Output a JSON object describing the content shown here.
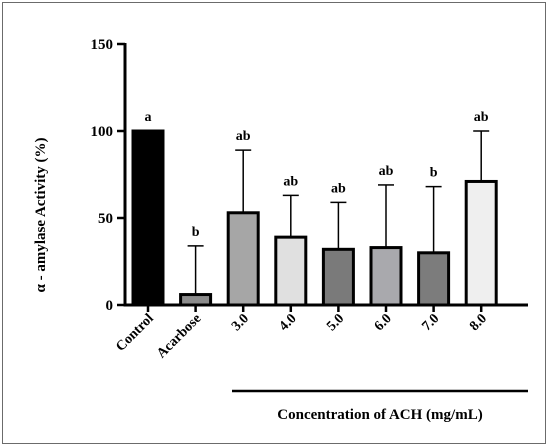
{
  "chart_data": {
    "type": "bar",
    "ylabel": "α - amylase Activity (%)",
    "xgroup_label": "Concentration of ACH (mg/mL)",
    "ylim": [
      0,
      150
    ],
    "yticks": [
      "0",
      "50",
      "100",
      "150"
    ],
    "categories": [
      "Control",
      "Acarbose",
      "3.0",
      "4.0",
      "5.0",
      "6.0",
      "7.0",
      "8.0"
    ],
    "values": [
      100,
      6,
      53,
      39,
      32,
      33,
      30,
      71
    ],
    "error_upper": [
      100,
      34,
      89,
      63,
      59,
      69,
      68,
      100
    ],
    "significance": [
      "a",
      "b",
      "ab",
      "ab",
      "ab",
      "ab",
      "b",
      "ab"
    ],
    "bar_colors": [
      "#000000",
      "#8c8c8c",
      "#a6a6a6",
      "#e0e0e0",
      "#7a7a7a",
      "#a9a9ad",
      "#7c7c7c",
      "#efefef"
    ],
    "grid": false,
    "legend": "none"
  }
}
